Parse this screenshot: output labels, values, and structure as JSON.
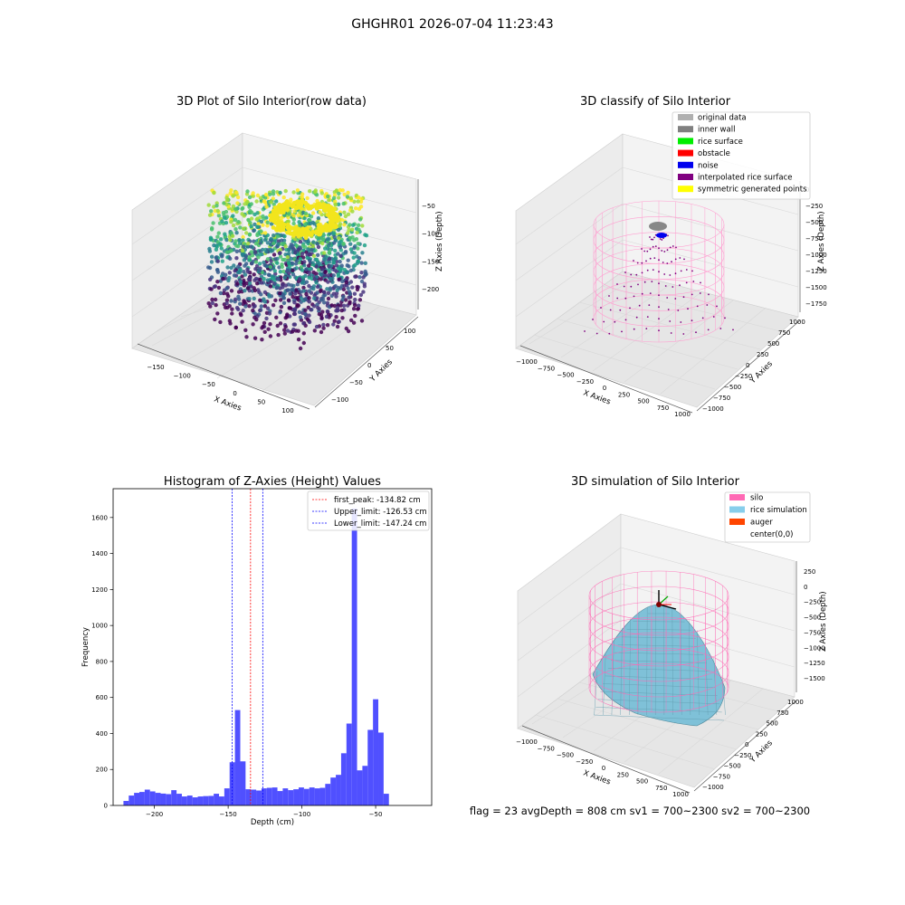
{
  "figure": {
    "suptitle": "GHGHR01 2026-07-04 11:23:43",
    "footer": "flag = 23   avgDepth = 808 cm  sv1 = 700~2300  sv2 = 700~2300"
  },
  "panels": {
    "raw": {
      "title": "3D Plot of Silo Interior(row data)",
      "xlabel": "X Axies",
      "ylabel": "Y Axies",
      "zlabel": "Z Axies (Depth)",
      "xticks": [
        "−150",
        "−100",
        "−50",
        "0",
        "50",
        "100"
      ],
      "yticks": [
        "−100",
        "−50",
        "0",
        "50",
        "100"
      ],
      "zticks": [
        "−50",
        "−100",
        "−150",
        "−200"
      ]
    },
    "classify": {
      "title": "3D classify of Silo Interior",
      "xlabel": "X Axies",
      "ylabel": "Y Axies",
      "zlabel": "Z Axies (Depth)",
      "xticks": [
        "−1000",
        "−750",
        "−500",
        "−250",
        "0",
        "250",
        "500",
        "750",
        "1000"
      ],
      "yticks": [
        "−1000",
        "−750",
        "−500",
        "−250",
        "0",
        "250",
        "500",
        "750",
        "1000"
      ],
      "zticks": [
        "0",
        "−250",
        "−500",
        "−750",
        "−1000",
        "−1250",
        "−1500",
        "−1750"
      ],
      "legend": [
        {
          "label": "original data",
          "color": "#b0b0b0"
        },
        {
          "label": "inner wall",
          "color": "#808080"
        },
        {
          "label": "rice surface",
          "color": "#00ee00"
        },
        {
          "label": "obstacle",
          "color": "#ff0000"
        },
        {
          "label": "noise",
          "color": "#0000ee"
        },
        {
          "label": "interpolated rice surface",
          "color": "#800080"
        },
        {
          "label": "symmetric generated points",
          "color": "#ffff00"
        }
      ]
    },
    "simulation": {
      "title": "3D simulation of Silo Interior",
      "xlabel": "X Axies",
      "ylabel": "Y Axies",
      "zlabel": "Z Axies (Depth)",
      "xticks": [
        "−1000",
        "−750",
        "−500",
        "−250",
        "0",
        "250",
        "500",
        "750",
        "1000"
      ],
      "yticks": [
        "−1000",
        "−750",
        "−500",
        "−250",
        "0",
        "250",
        "500",
        "750",
        "1000"
      ],
      "zticks": [
        "250",
        "0",
        "−250",
        "−500",
        "−750",
        "−1000",
        "−1250",
        "−1500"
      ],
      "legend": [
        {
          "label": "silo",
          "color": "#ff69b4"
        },
        {
          "label": "rice simulation",
          "color": "#87ceeb"
        },
        {
          "label": "auger",
          "color": "#ff4500"
        },
        {
          "label": "center(0,0)",
          "color": ""
        }
      ]
    }
  },
  "chart_data": {
    "type": "bar",
    "title": "Histogram of Z-Axies (Height) Values",
    "xlabel": "Depth (cm)",
    "ylabel": "Frequency",
    "xlim": [
      -228,
      -12
    ],
    "ylim": [
      0,
      1760
    ],
    "xticks": [
      -200,
      -150,
      -100,
      -50
    ],
    "xtick_labels": [
      "−200",
      "−150",
      "−100",
      "−50"
    ],
    "yticks": [
      0,
      200,
      400,
      600,
      800,
      1000,
      1200,
      1400,
      1600
    ],
    "bar_color": "#5050ff",
    "bin_width": 3.6,
    "bin_start": -221,
    "values": [
      25,
      55,
      70,
      75,
      88,
      78,
      70,
      66,
      63,
      85,
      65,
      50,
      55,
      45,
      50,
      52,
      53,
      65,
      50,
      95,
      240,
      530,
      245,
      90,
      88,
      83,
      95,
      98,
      100,
      80,
      95,
      85,
      90,
      100,
      92,
      100,
      95,
      98,
      120,
      155,
      170,
      290,
      455,
      1650,
      195,
      220,
      420,
      590,
      405,
      65
    ],
    "vlines": [
      {
        "label": "first_peak: -134.82 cm",
        "x": -134.82,
        "color": "#ff0000"
      },
      {
        "label": "Upper_limit: -126.53 cm",
        "x": -126.53,
        "color": "#0000ff"
      },
      {
        "label": "Lower_limit: -147.24 cm",
        "x": -147.24,
        "color": "#0000ff"
      }
    ],
    "legend_position": "top-right"
  }
}
